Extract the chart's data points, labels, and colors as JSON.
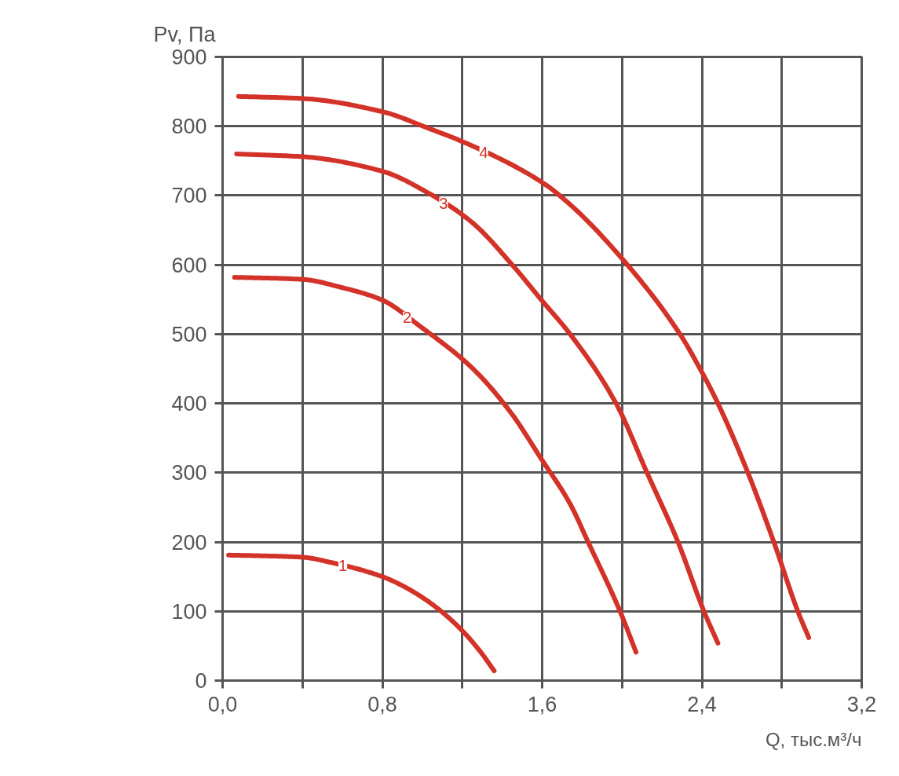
{
  "chart_data": {
    "type": "line",
    "xlabel": "Q, тыс.м³/ч",
    "ylabel": "Pv, Па",
    "xlim": [
      0,
      3.2
    ],
    "ylim": [
      0,
      900
    ],
    "xticks": [
      {
        "value": 0,
        "label": "0,0"
      },
      {
        "value": 0.4,
        "label": null
      },
      {
        "value": 0.8,
        "label": "0,8"
      },
      {
        "value": 1.2,
        "label": null
      },
      {
        "value": 1.6,
        "label": "1,6"
      },
      {
        "value": 2.0,
        "label": null
      },
      {
        "value": 2.4,
        "label": "2,4"
      },
      {
        "value": 2.8,
        "label": null
      },
      {
        "value": 3.2,
        "label": "3,2"
      }
    ],
    "yticks": [
      0,
      100,
      200,
      300,
      400,
      500,
      600,
      700,
      800,
      900
    ],
    "grid": true,
    "series": [
      {
        "name": "1",
        "color": "#d33228",
        "x": [
          0.03,
          0.2,
          0.4,
          0.55,
          0.8,
          0.9,
          1.0,
          1.09,
          1.2,
          1.29,
          1.36
        ],
        "values": [
          181,
          180,
          178,
          170,
          150,
          137,
          120,
          101,
          72,
          42,
          14
        ]
      },
      {
        "name": "2",
        "color": "#d33228",
        "x": [
          0.06,
          0.4,
          0.6,
          0.8,
          0.99,
          1.25,
          1.44,
          1.6,
          1.74,
          1.83,
          1.99,
          2.07
        ],
        "values": [
          582,
          579,
          567,
          549,
          511,
          451,
          388,
          318,
          255,
          200,
          100,
          41
        ]
      },
      {
        "name": "3",
        "color": "#d33228",
        "x": [
          0.07,
          0.4,
          0.8,
          1.04,
          1.25,
          1.45,
          1.6,
          1.74,
          1.97,
          2.125,
          2.28,
          2.41,
          2.48
        ],
        "values": [
          760,
          756,
          735,
          702,
          661,
          600,
          548,
          500,
          400,
          300,
          200,
          100,
          54
        ]
      },
      {
        "name": "4",
        "color": "#d33228",
        "x": [
          0.08,
          0.4,
          0.8,
          1.04,
          1.2,
          1.6,
          1.74,
          2.0,
          2.29,
          2.4,
          2.48,
          2.63,
          2.76,
          2.88,
          2.935
        ],
        "values": [
          843,
          840,
          821,
          796,
          778,
          719,
          687,
          609,
          500,
          445,
          400,
          300,
          200,
          100,
          62
        ]
      }
    ]
  }
}
